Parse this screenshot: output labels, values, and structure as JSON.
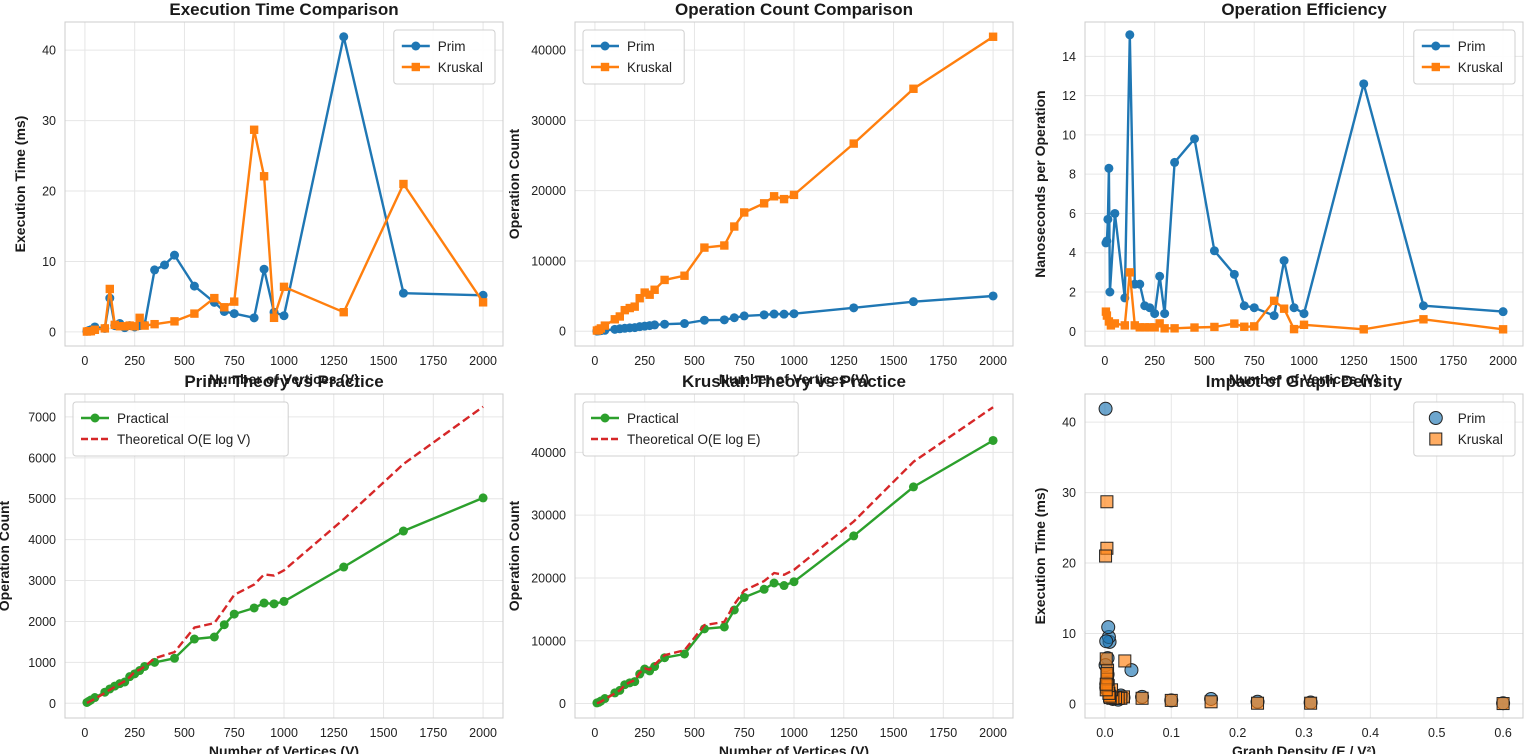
{
  "chart_data": [
    {
      "type": "line",
      "title": "Execution Time Comparison",
      "xlabel": "Number of Vertices (V)",
      "ylabel": "Execution Time (ms)",
      "xlim": [
        -100,
        2100
      ],
      "ylim": [
        -2,
        44
      ],
      "xticks": [
        0,
        250,
        500,
        750,
        1000,
        1250,
        1500,
        1750,
        2000
      ],
      "yticks": [
        0,
        10,
        20,
        30,
        40
      ],
      "grid": true,
      "legend": "top-right",
      "series": [
        {
          "name": "Prim",
          "color": "#1f77b4",
          "marker": "circle",
          "x": [
            10,
            20,
            30,
            50,
            100,
            125,
            150,
            175,
            200,
            225,
            250,
            275,
            300,
            350,
            400,
            450,
            550,
            650,
            700,
            750,
            850,
            900,
            950,
            1000,
            1300,
            1600,
            2000
          ],
          "y": [
            0.1,
            0.2,
            0.3,
            0.7,
            0.5,
            4.8,
            0.9,
            1.2,
            0.6,
            0.9,
            0.7,
            0.9,
            1.0,
            8.8,
            9.5,
            10.9,
            6.5,
            4.2,
            2.9,
            2.6,
            2.0,
            8.9,
            2.8,
            2.3,
            41.9,
            5.5,
            5.2
          ]
        },
        {
          "name": "Kruskal",
          "color": "#ff7f0e",
          "marker": "square",
          "x": [
            10,
            20,
            30,
            50,
            100,
            125,
            150,
            175,
            200,
            225,
            250,
            275,
            300,
            350,
            450,
            550,
            650,
            700,
            750,
            850,
            900,
            950,
            1000,
            1300,
            1600,
            2000
          ],
          "y": [
            0.05,
            0.1,
            0.1,
            0.3,
            0.5,
            6.1,
            1.0,
            0.8,
            0.8,
            0.9,
            0.8,
            2.0,
            0.9,
            1.1,
            1.5,
            2.6,
            4.8,
            3.5,
            4.3,
            28.7,
            22.1,
            2.0,
            6.4,
            2.8,
            21.0,
            4.2
          ]
        }
      ]
    },
    {
      "type": "line",
      "title": "Operation Count Comparison",
      "xlabel": "Number of Vertices (V)",
      "ylabel": "Operation Count",
      "xlim": [
        -100,
        2100
      ],
      "ylim": [
        -2100,
        44000
      ],
      "xticks": [
        0,
        250,
        500,
        750,
        1000,
        1250,
        1500,
        1750,
        2000
      ],
      "yticks": [
        0,
        10000,
        20000,
        30000,
        40000
      ],
      "grid": true,
      "legend": "top-left",
      "series": [
        {
          "name": "Prim",
          "color": "#1f77b4",
          "marker": "circle",
          "x": [
            10,
            20,
            30,
            50,
            100,
            125,
            150,
            175,
            200,
            225,
            250,
            275,
            300,
            350,
            450,
            550,
            650,
            700,
            750,
            850,
            900,
            950,
            1000,
            1300,
            1600,
            2000
          ],
          "y": [
            20,
            50,
            80,
            140,
            270,
            350,
            420,
            480,
            520,
            650,
            720,
            800,
            900,
            1000,
            1100,
            1570,
            1620,
            1920,
            2180,
            2330,
            2450,
            2430,
            2490,
            3330,
            4210,
            5020
          ]
        },
        {
          "name": "Kruskal",
          "color": "#ff7f0e",
          "marker": "square",
          "x": [
            10,
            20,
            30,
            50,
            100,
            125,
            150,
            175,
            200,
            225,
            250,
            275,
            300,
            350,
            450,
            550,
            650,
            700,
            750,
            850,
            900,
            950,
            1000,
            1300,
            1600,
            2000
          ],
          "y": [
            100,
            200,
            400,
            800,
            1700,
            2100,
            3000,
            3300,
            3500,
            4700,
            5500,
            5200,
            5900,
            7300,
            7900,
            11900,
            12200,
            14900,
            16900,
            18200,
            19200,
            18800,
            19400,
            26700,
            34500,
            41900
          ]
        }
      ]
    },
    {
      "type": "line",
      "title": "Operation Efficiency",
      "xlabel": "Number of Vertices (V)",
      "ylabel": "Nanoseconds per Operation",
      "xlim": [
        -100,
        2100
      ],
      "ylim": [
        -0.75,
        15.75
      ],
      "xticks": [
        0,
        250,
        500,
        750,
        1000,
        1250,
        1500,
        1750,
        2000
      ],
      "yticks": [
        0,
        2,
        4,
        6,
        8,
        10,
        12,
        14
      ],
      "grid": true,
      "legend": "top-right",
      "series": [
        {
          "name": "Prim",
          "color": "#1f77b4",
          "marker": "circle",
          "x": [
            5,
            10,
            15,
            20,
            25,
            50,
            100,
            125,
            150,
            175,
            200,
            225,
            250,
            275,
            300,
            350,
            450,
            550,
            650,
            700,
            750,
            850,
            900,
            950,
            1000,
            1300,
            1600,
            2000
          ],
          "y": [
            4.5,
            4.6,
            5.7,
            8.3,
            2.0,
            6.0,
            1.7,
            15.1,
            2.4,
            2.4,
            1.3,
            1.2,
            0.9,
            2.8,
            0.9,
            8.6,
            9.8,
            4.1,
            2.9,
            1.3,
            1.2,
            0.8,
            3.6,
            1.2,
            0.9,
            12.6,
            1.3,
            1.0
          ]
        },
        {
          "name": "Kruskal",
          "color": "#ff7f0e",
          "marker": "square",
          "x": [
            5,
            10,
            20,
            30,
            50,
            100,
            125,
            150,
            175,
            200,
            225,
            250,
            275,
            300,
            350,
            450,
            550,
            650,
            700,
            750,
            850,
            900,
            950,
            1000,
            1300,
            1600,
            2000
          ],
          "y": [
            1.0,
            0.8,
            0.5,
            0.3,
            0.4,
            0.3,
            3.0,
            0.3,
            0.2,
            0.2,
            0.2,
            0.2,
            0.4,
            0.15,
            0.15,
            0.19,
            0.22,
            0.39,
            0.23,
            0.25,
            1.55,
            1.15,
            0.11,
            0.33,
            0.1,
            0.61,
            0.1
          ]
        }
      ]
    },
    {
      "type": "line",
      "title": "Prim: Theory vs Practice",
      "xlabel": "Number of Vertices (V)",
      "ylabel": "Operation Count",
      "xlim": [
        -100,
        2100
      ],
      "ylim": [
        -360,
        7560
      ],
      "xticks": [
        0,
        250,
        500,
        750,
        1000,
        1250,
        1500,
        1750,
        2000
      ],
      "yticks": [
        0,
        1000,
        2000,
        3000,
        4000,
        5000,
        6000,
        7000
      ],
      "grid": true,
      "legend": "top-left",
      "series": [
        {
          "name": "Practical",
          "color": "#2ca02c",
          "marker": "circle",
          "line": "solid",
          "x": [
            10,
            20,
            30,
            50,
            100,
            125,
            150,
            175,
            200,
            225,
            250,
            275,
            300,
            350,
            450,
            550,
            650,
            700,
            750,
            850,
            900,
            950,
            1000,
            1300,
            1600,
            2000
          ],
          "y": [
            20,
            50,
            80,
            140,
            270,
            350,
            420,
            480,
            520,
            650,
            720,
            800,
            900,
            1000,
            1100,
            1570,
            1620,
            1920,
            2180,
            2330,
            2450,
            2430,
            2490,
            3330,
            4210,
            5020
          ]
        },
        {
          "name": "Theoretical O(E log V)",
          "color": "#d62728",
          "marker": "none",
          "line": "dashed",
          "x": [
            10,
            20,
            30,
            50,
            100,
            125,
            150,
            175,
            200,
            225,
            250,
            275,
            300,
            350,
            450,
            550,
            650,
            700,
            750,
            850,
            900,
            950,
            1000,
            1300,
            1600,
            2000
          ],
          "y": [
            10,
            30,
            60,
            110,
            250,
            330,
            400,
            470,
            540,
            640,
            770,
            820,
            900,
            1100,
            1250,
            1850,
            1960,
            2300,
            2650,
            2900,
            3150,
            3120,
            3250,
            4500,
            5850,
            7250
          ]
        }
      ]
    },
    {
      "type": "line",
      "title": "Kruskal: Theory vs Practice",
      "xlabel": "Number of Vertices (V)",
      "ylabel": "Operation Count",
      "xlim": [
        -100,
        2100
      ],
      "ylim": [
        -2300,
        49300
      ],
      "xticks": [
        0,
        250,
        500,
        750,
        1000,
        1250,
        1500,
        1750,
        2000
      ],
      "yticks": [
        0,
        10000,
        20000,
        30000,
        40000
      ],
      "grid": true,
      "legend": "top-left",
      "series": [
        {
          "name": "Practical",
          "color": "#2ca02c",
          "marker": "circle",
          "line": "solid",
          "x": [
            10,
            20,
            30,
            50,
            100,
            125,
            150,
            175,
            200,
            225,
            250,
            275,
            300,
            350,
            450,
            550,
            650,
            700,
            750,
            850,
            900,
            950,
            1000,
            1300,
            1600,
            2000
          ],
          "y": [
            100,
            200,
            400,
            800,
            1700,
            2100,
            3000,
            3300,
            3500,
            4700,
            5500,
            5200,
            5900,
            7300,
            7900,
            11900,
            12200,
            14900,
            16900,
            18200,
            19200,
            18800,
            19400,
            26700,
            34500,
            41900
          ]
        },
        {
          "name": "Theoretical O(E log E)",
          "color": "#d62728",
          "marker": "none",
          "line": "dashed",
          "x": [
            10,
            20,
            30,
            50,
            100,
            125,
            150,
            175,
            200,
            225,
            250,
            275,
            300,
            350,
            450,
            550,
            650,
            700,
            750,
            850,
            900,
            950,
            1000,
            1300,
            1600,
            2000
          ],
          "y": [
            50,
            150,
            300,
            700,
            1600,
            2100,
            2900,
            3400,
            3700,
            4900,
            5600,
            5400,
            6200,
            7700,
            8500,
            12500,
            13000,
            15800,
            18000,
            19500,
            20800,
            20500,
            21300,
            29000,
            38500,
            47200
          ]
        }
      ]
    },
    {
      "type": "scatter",
      "title": "Impact of Graph Density",
      "xlabel": "Graph Density (E / V²)",
      "ylabel": "Execution Time (ms)",
      "xlim": [
        -0.03,
        0.63
      ],
      "ylim": [
        -2,
        44
      ],
      "xticks": [
        0.0,
        0.1,
        0.2,
        0.3,
        0.4,
        0.5,
        0.6
      ],
      "yticks": [
        0,
        10,
        20,
        30,
        40
      ],
      "grid": true,
      "legend": "top-right",
      "series": [
        {
          "name": "Prim",
          "color": "#1f77b4",
          "marker": "circle",
          "x": [
            0.6,
            0.31,
            0.23,
            0.16,
            0.1,
            0.056,
            0.04,
            0.028,
            0.024,
            0.02,
            0.016,
            0.012,
            0.01,
            0.008,
            0.007,
            0.006,
            0.005,
            0.004,
            0.004,
            0.003,
            0.003,
            0.003,
            0.002,
            0.002,
            0.002,
            0.001,
            0.001
          ],
          "y": [
            0.1,
            0.2,
            0.3,
            0.7,
            0.5,
            1.0,
            4.8,
            0.9,
            1.2,
            0.6,
            0.9,
            0.7,
            0.9,
            1.0,
            8.8,
            9.5,
            10.9,
            6.5,
            4.2,
            2.9,
            2.6,
            2.0,
            8.9,
            2.8,
            2.3,
            41.9,
            5.5
          ]
        },
        {
          "name": "Kruskal",
          "color": "#ff7f0e",
          "marker": "square",
          "x": [
            0.6,
            0.31,
            0.23,
            0.16,
            0.1,
            0.056,
            0.03,
            0.028,
            0.024,
            0.02,
            0.016,
            0.012,
            0.01,
            0.008,
            0.007,
            0.006,
            0.005,
            0.004,
            0.004,
            0.003,
            0.003,
            0.003,
            0.002,
            0.002,
            0.002,
            0.001
          ],
          "y": [
            0.05,
            0.1,
            0.1,
            0.3,
            0.5,
            0.8,
            6.1,
            1.0,
            0.8,
            0.8,
            0.9,
            0.8,
            2.0,
            0.9,
            1.1,
            1.5,
            2.6,
            4.8,
            3.5,
            4.3,
            28.7,
            22.1,
            2.0,
            6.4,
            2.8,
            21.0
          ]
        }
      ]
    }
  ]
}
